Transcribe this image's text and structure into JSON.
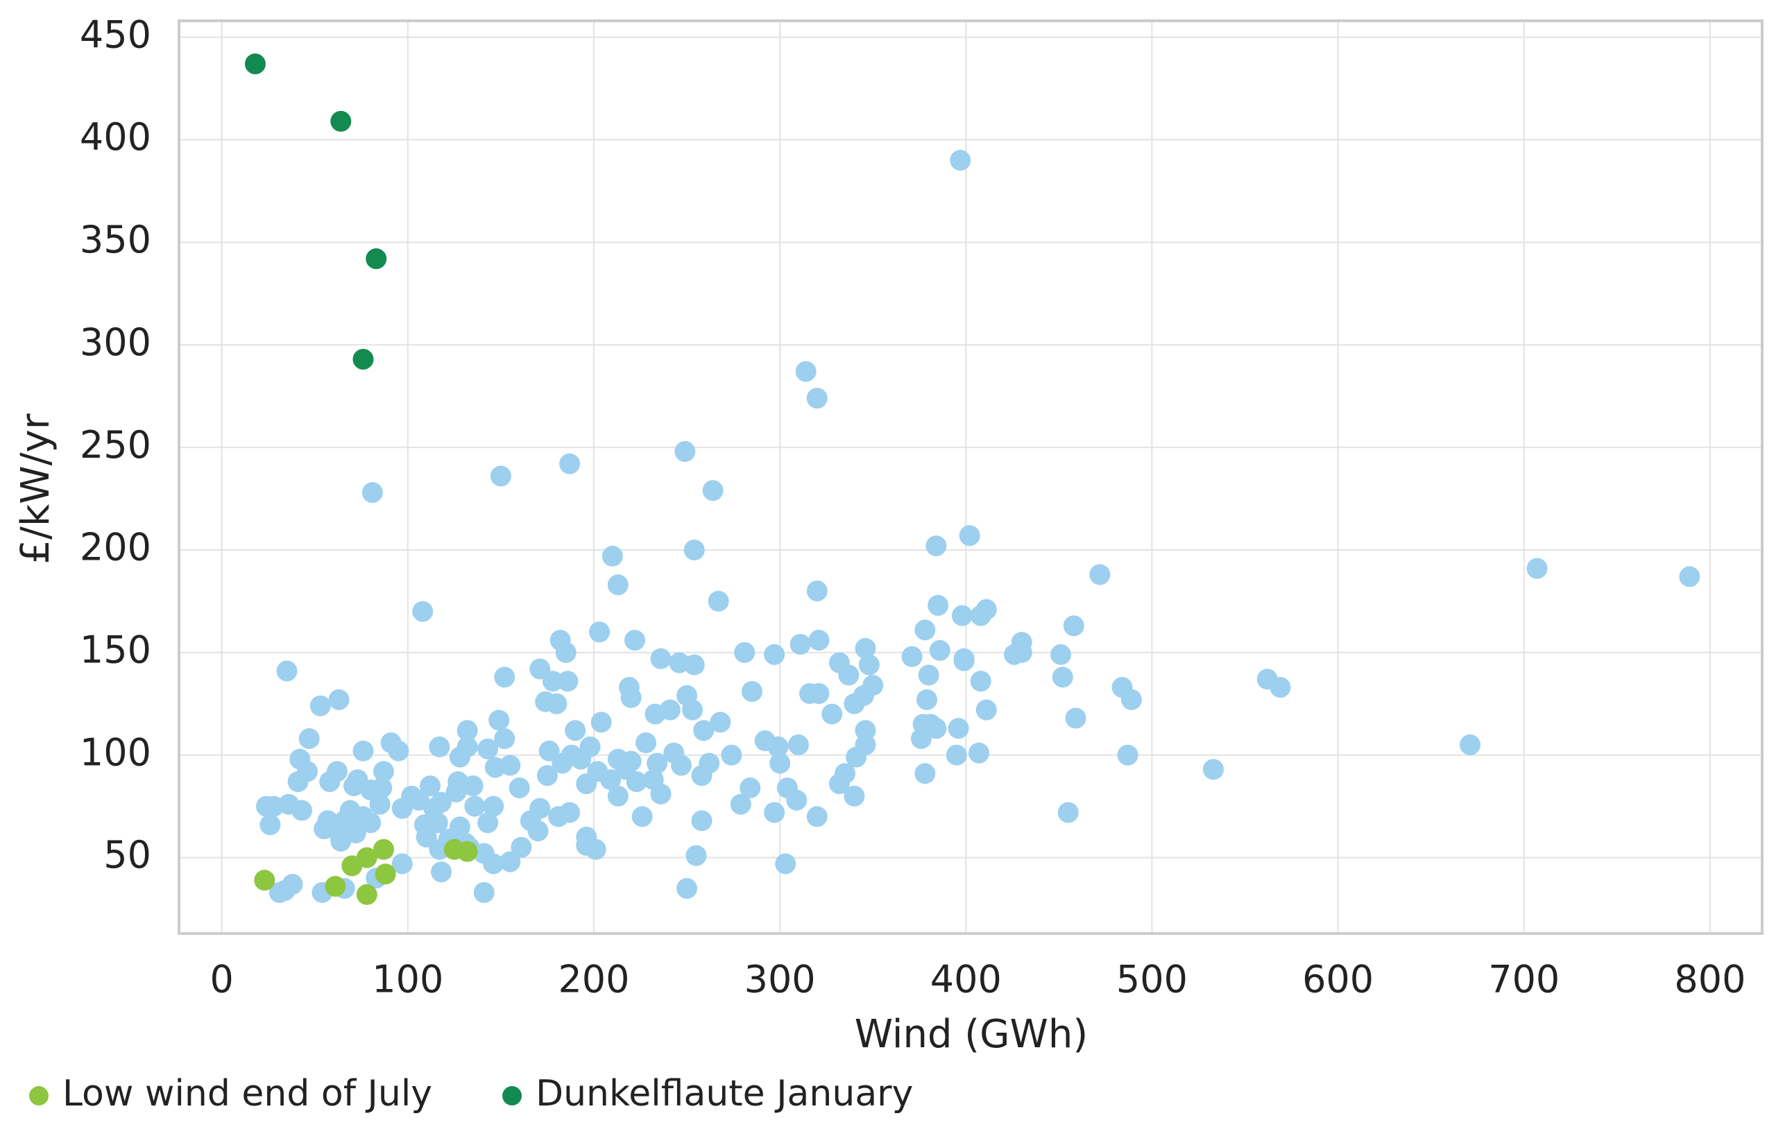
{
  "chart_data": {
    "type": "scatter",
    "x_label": "Wind (GWh)",
    "y_label": "£/kW/yr",
    "xlim": [
      -23,
      828
    ],
    "ylim": [
      13,
      458
    ],
    "xticks": [
      0,
      100,
      200,
      300,
      400,
      500,
      600,
      700,
      800
    ],
    "yticks": [
      50,
      100,
      150,
      200,
      250,
      300,
      350,
      400,
      450
    ],
    "grid": true,
    "legend": "bottom-left",
    "series": [
      {
        "color": "#9dcfef",
        "x": [
          397,
          314,
          320,
          249,
          187,
          150,
          264,
          81,
          402,
          384,
          254,
          210,
          707,
          789,
          472,
          213,
          320,
          108,
          267,
          385,
          411,
          398,
          408,
          458,
          378,
          203,
          222,
          182,
          321,
          311,
          346,
          386,
          430,
          185,
          281,
          297,
          371,
          426,
          451,
          236,
          246,
          254,
          171,
          332,
          348,
          399,
          380,
          399,
          430,
          562,
          569,
          452,
          484,
          489,
          408,
          35,
          63,
          53,
          152,
          178,
          186,
          250,
          285,
          316,
          321,
          337,
          350,
          219,
          220,
          174,
          180,
          233,
          241,
          253,
          259,
          268,
          328,
          340,
          345,
          379,
          381,
          384,
          396,
          411,
          459,
          377,
          376,
          346,
          346,
          310,
          292,
          299,
          671,
          487,
          533,
          395,
          407,
          378,
          341,
          335,
          332,
          340,
          279,
          297,
          304,
          309,
          320,
          455,
          303,
          250,
          255,
          258,
          284,
          300,
          274,
          262,
          258,
          247,
          243,
          234,
          232,
          236,
          226,
          228,
          220,
          209,
          213,
          204,
          198,
          190,
          196,
          202,
          196,
          196,
          201,
          187,
          181,
          171,
          175,
          183,
          176,
          170,
          161,
          160,
          155,
          152,
          149,
          143,
          147,
          132,
          132,
          128,
          135,
          127,
          136,
          146,
          143,
          141,
          146,
          155,
          141,
          118,
          117,
          122,
          110,
          109,
          114,
          112,
          117,
          102,
          97,
          95,
          91,
          87,
          80,
          86,
          76,
          73,
          71,
          62,
          58,
          47,
          42,
          46,
          41,
          36,
          43,
          24,
          28,
          26,
          64,
          63,
          69,
          76,
          80,
          85,
          66,
          72,
          57,
          55,
          31,
          34,
          38,
          54,
          66,
          83,
          97,
          118,
          126,
          131,
          133,
          128,
          116,
          106,
          166,
          188,
          193,
          217,
          223,
          213
        ],
        "y": [
          390,
          287,
          274,
          248,
          242,
          236,
          229,
          228,
          207,
          202,
          200,
          197,
          191,
          187,
          188,
          183,
          180,
          170,
          175,
          173,
          171,
          168,
          168,
          163,
          161,
          160,
          156,
          156,
          156,
          154,
          152,
          151,
          155,
          150,
          150,
          149,
          148,
          149,
          149,
          147,
          145,
          144,
          142,
          145,
          144,
          146,
          139,
          147,
          150,
          137,
          133,
          138,
          133,
          127,
          136,
          141,
          127,
          124,
          138,
          136,
          136,
          129,
          131,
          130,
          130,
          139,
          134,
          133,
          128,
          126,
          125,
          120,
          122,
          122,
          112,
          116,
          120,
          125,
          129,
          127,
          115,
          113,
          113,
          122,
          118,
          115,
          108,
          112,
          105,
          105,
          107,
          104,
          105,
          100,
          93,
          100,
          101,
          91,
          99,
          91,
          86,
          80,
          76,
          72,
          84,
          78,
          70,
          72,
          47,
          35,
          51,
          68,
          84,
          96,
          100,
          96,
          90,
          95,
          101,
          96,
          88,
          81,
          70,
          106,
          97,
          88,
          80,
          116,
          104,
          112,
          86,
          92,
          60,
          56,
          54,
          72,
          70,
          74,
          90,
          96,
          102,
          63,
          55,
          84,
          95,
          108,
          117,
          103,
          94,
          104,
          112,
          99,
          85,
          87,
          75,
          75,
          67,
          52,
          47,
          48,
          33,
          43,
          54,
          59,
          60,
          66,
          74,
          85,
          104,
          80,
          74,
          102,
          106,
          92,
          83,
          84,
          102,
          88,
          85,
          92,
          87,
          108,
          98,
          92,
          87,
          76,
          73,
          75,
          75,
          66,
          58,
          62,
          73,
          70,
          67,
          76,
          68,
          62,
          68,
          64,
          33,
          34,
          37,
          33,
          35,
          40,
          47,
          77,
          82,
          57,
          55,
          65,
          67,
          78,
          68,
          100,
          98,
          93,
          87,
          98
        ]
      },
      {
        "name": "Low wind end of July",
        "color": "#8dc63f",
        "x": [
          23,
          61,
          70,
          78,
          78,
          87,
          88,
          125,
          132
        ],
        "y": [
          39,
          36,
          46,
          32,
          50,
          54,
          42,
          54,
          53
        ]
      },
      {
        "name": "Dunkelflaute January",
        "color": "#138a50",
        "x": [
          18,
          64,
          83,
          76
        ],
        "y": [
          437,
          409,
          342,
          293
        ]
      }
    ]
  }
}
